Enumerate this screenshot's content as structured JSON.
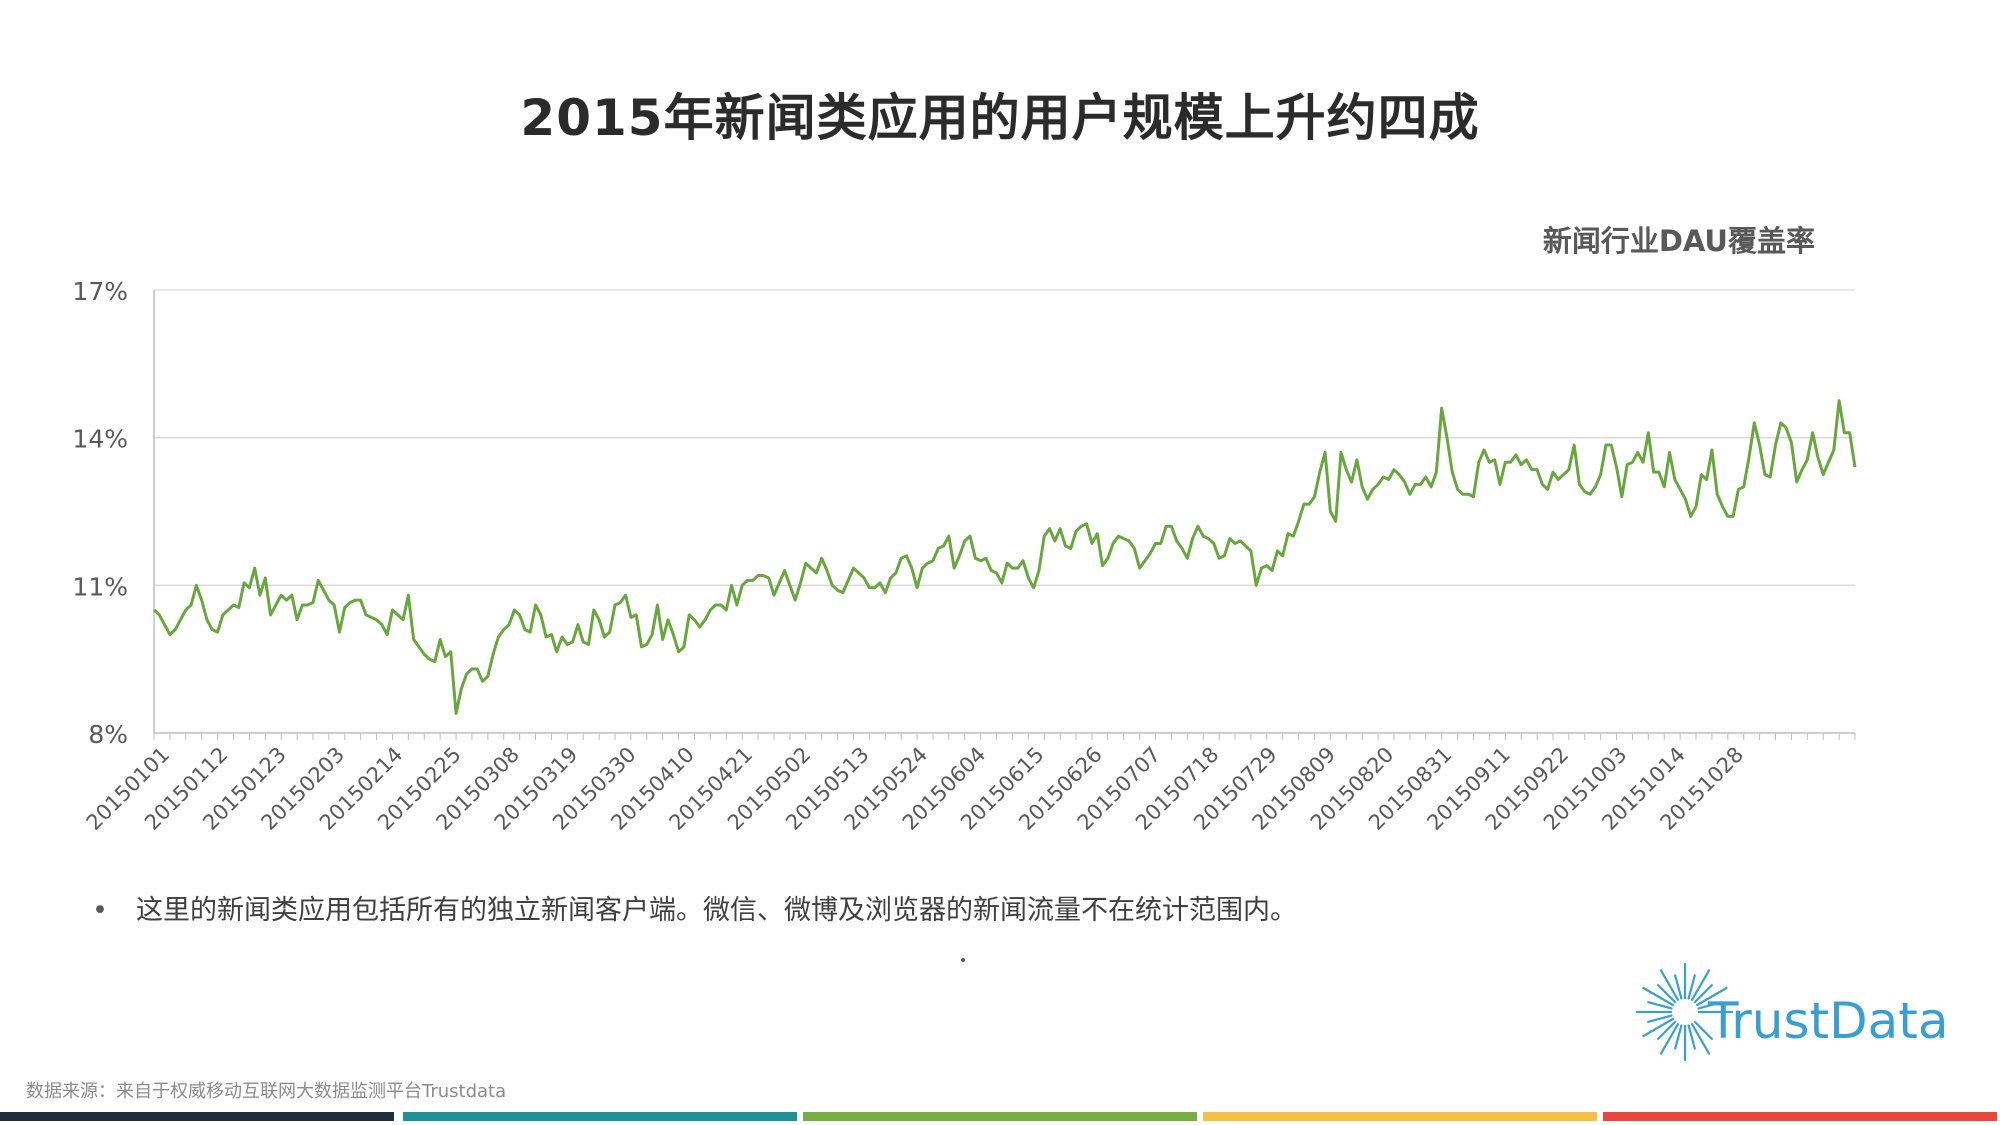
{
  "page": {
    "title": "2015年新闻类应用的用户规模上升约四成",
    "bullet_marker": "•",
    "bullet_note": "这里的新闻类应用包括所有的独立新闻客户端。微信、微博及浏览器的新闻流量不在统计范围内。",
    "logo_text": "TrustData",
    "source": "数据来源：来自于权威移动互联网大数据监测平台Trustdata"
  },
  "colors": {
    "line": "#6aa640",
    "grid": "#d9d9d9",
    "axis": "#bfbfbf",
    "text": "#595959",
    "logo": "#3a9fd0",
    "bars": [
      "#1f2d3d",
      "#1e9296",
      "#76b043",
      "#f5c043",
      "#e8473b"
    ]
  },
  "chart_data": {
    "type": "line",
    "title": "新闻行业DAU覆盖率",
    "xlabel": "",
    "ylabel": "",
    "y_unit": "%",
    "ylim": [
      8,
      17
    ],
    "yticks": [
      8,
      11,
      14,
      17
    ],
    "ytick_labels": [
      "8%",
      "11%",
      "14%",
      "17%"
    ],
    "x_start": "20150101",
    "x_end": "20151031",
    "x_tick_labels": [
      "20150101",
      "20150112",
      "20150123",
      "20150203",
      "20150214",
      "20150225",
      "20150308",
      "20150319",
      "20150330",
      "20150410",
      "20150421",
      "20150502",
      "20150513",
      "20150524",
      "20150604",
      "20150615",
      "20150626",
      "20150707",
      "20150718",
      "20150729",
      "20150809",
      "20150820",
      "20150831",
      "20150911",
      "20150922",
      "20151003",
      "20151014",
      "20151028"
    ],
    "grid": true,
    "legend": "none",
    "series": [
      {
        "name": "新闻行业DAU覆盖率",
        "values": [
          10.5,
          10.4,
          10.2,
          10.0,
          10.1,
          10.3,
          10.5,
          10.6,
          11.0,
          10.7,
          10.3,
          10.1,
          10.05,
          10.4,
          10.5,
          10.6,
          10.55,
          11.05,
          10.95,
          11.35,
          10.8,
          11.15,
          10.4,
          10.6,
          10.8,
          10.7,
          10.8,
          10.3,
          10.6,
          10.6,
          10.65,
          11.1,
          10.9,
          10.7,
          10.6,
          10.05,
          10.55,
          10.65,
          10.7,
          10.7,
          10.4,
          10.35,
          10.3,
          10.2,
          10.0,
          10.5,
          10.4,
          10.3,
          10.8,
          9.9,
          9.75,
          9.6,
          9.5,
          9.45,
          9.9,
          9.55,
          9.65,
          8.4,
          8.9,
          9.2,
          9.3,
          9.3,
          9.05,
          9.15,
          9.6,
          9.95,
          10.1,
          10.2,
          10.5,
          10.4,
          10.1,
          10.05,
          10.6,
          10.4,
          9.95,
          10.0,
          9.65,
          9.95,
          9.8,
          9.85,
          10.2,
          9.85,
          9.8,
          10.5,
          10.3,
          9.95,
          10.05,
          10.6,
          10.65,
          10.8,
          10.35,
          10.4,
          9.75,
          9.8,
          10.0,
          10.6,
          9.9,
          10.3,
          10.0,
          9.65,
          9.75,
          10.4,
          10.3,
          10.15,
          10.3,
          10.5,
          10.6,
          10.6,
          10.5,
          11.0,
          10.6,
          11.0,
          11.1,
          11.1,
          11.2,
          11.2,
          11.15,
          10.8,
          11.05,
          11.3,
          11.0,
          10.7,
          11.05,
          11.45,
          11.35,
          11.25,
          11.55,
          11.3,
          11.0,
          10.9,
          10.85,
          11.1,
          11.35,
          11.25,
          11.15,
          10.95,
          10.95,
          11.05,
          10.85,
          11.15,
          11.25,
          11.55,
          11.6,
          11.35,
          10.95,
          11.35,
          11.45,
          11.5,
          11.75,
          11.8,
          12.0,
          11.35,
          11.6,
          11.9,
          12.0,
          11.55,
          11.5,
          11.55,
          11.3,
          11.25,
          11.05,
          11.45,
          11.35,
          11.35,
          11.5,
          11.15,
          10.95,
          11.3,
          12.0,
          12.15,
          11.9,
          12.15,
          11.8,
          11.75,
          12.1,
          12.2,
          12.25,
          11.85,
          12.05,
          11.4,
          11.55,
          11.85,
          12.0,
          11.95,
          11.9,
          11.75,
          11.35,
          11.5,
          11.65,
          11.85,
          11.85,
          12.2,
          12.2,
          11.9,
          11.75,
          11.55,
          11.95,
          12.2,
          12.0,
          11.95,
          11.85,
          11.55,
          11.6,
          11.95,
          11.85,
          11.9,
          11.8,
          11.7,
          11.0,
          11.35,
          11.4,
          11.3,
          11.7,
          11.6,
          12.05,
          12.0,
          12.3,
          12.65,
          12.65,
          12.8,
          13.3,
          13.7,
          12.5,
          12.3,
          13.7,
          13.35,
          13.1,
          13.55,
          13.0,
          12.75,
          12.95,
          13.05,
          13.2,
          13.15,
          13.35,
          13.25,
          13.1,
          12.85,
          13.05,
          13.05,
          13.2,
          13.0,
          13.3,
          14.6,
          14.0,
          13.3,
          12.95,
          12.85,
          12.85,
          12.8,
          13.5,
          13.75,
          13.5,
          13.55,
          13.05,
          13.5,
          13.5,
          13.65,
          13.45,
          13.55,
          13.35,
          13.35,
          13.05,
          12.95,
          13.3,
          13.15,
          13.25,
          13.35,
          13.85,
          13.05,
          12.9,
          12.85,
          13.0,
          13.25,
          13.85,
          13.85,
          13.4,
          12.8,
          13.45,
          13.5,
          13.7,
          13.5,
          14.1,
          13.3,
          13.3,
          13.0,
          13.7,
          13.15,
          12.95,
          12.75,
          12.4,
          12.6,
          13.25,
          13.15,
          13.75,
          12.85,
          12.6,
          12.4,
          12.4,
          12.95,
          13.0,
          13.6,
          14.3,
          13.85,
          13.25,
          13.2,
          13.85,
          14.3,
          14.2,
          13.9,
          13.1,
          13.35,
          13.55,
          14.1,
          13.6,
          13.25,
          13.5,
          13.75,
          14.75,
          14.1,
          14.1,
          13.4
        ]
      }
    ]
  }
}
